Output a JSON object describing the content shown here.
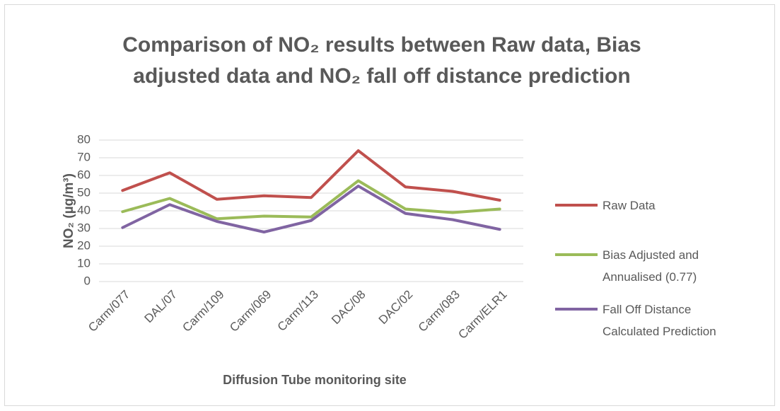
{
  "chart_data": {
    "type": "line",
    "title": "Comparison of NO₂ results between Raw data, Bias adjusted data and NO₂ fall off distance prediction",
    "x_label": "Diffusion Tube monitoring site",
    "y_label": "NO₂ (µg/m³)",
    "categories": [
      "Carm/077",
      "DAL/07",
      "Carm/109",
      "Carm/069",
      "Carm/113",
      "DAC/08",
      "DAC/02",
      "Carm/083",
      "Carm/ELR1"
    ],
    "series": [
      {
        "name": "Raw Data",
        "color": "#c0504d",
        "values": [
          51.5,
          61.5,
          46.5,
          48.5,
          47.5,
          74,
          53.5,
          51,
          46
        ]
      },
      {
        "name": "Bias Adjusted and Annualised (0.77)",
        "color": "#9bbb59",
        "values": [
          39.5,
          47,
          35.5,
          37,
          36.5,
          57,
          41,
          39,
          41
        ]
      },
      {
        "name": "Fall Off Distance Calculated Prediction",
        "color": "#8064a2",
        "values": [
          30.5,
          43.5,
          34,
          28,
          34.5,
          54,
          38.5,
          35,
          29.5
        ]
      }
    ],
    "ylim": [
      0,
      80
    ],
    "yticks": [
      0,
      10,
      20,
      30,
      40,
      50,
      60,
      70,
      80
    ],
    "grid": true,
    "legend": "right"
  }
}
